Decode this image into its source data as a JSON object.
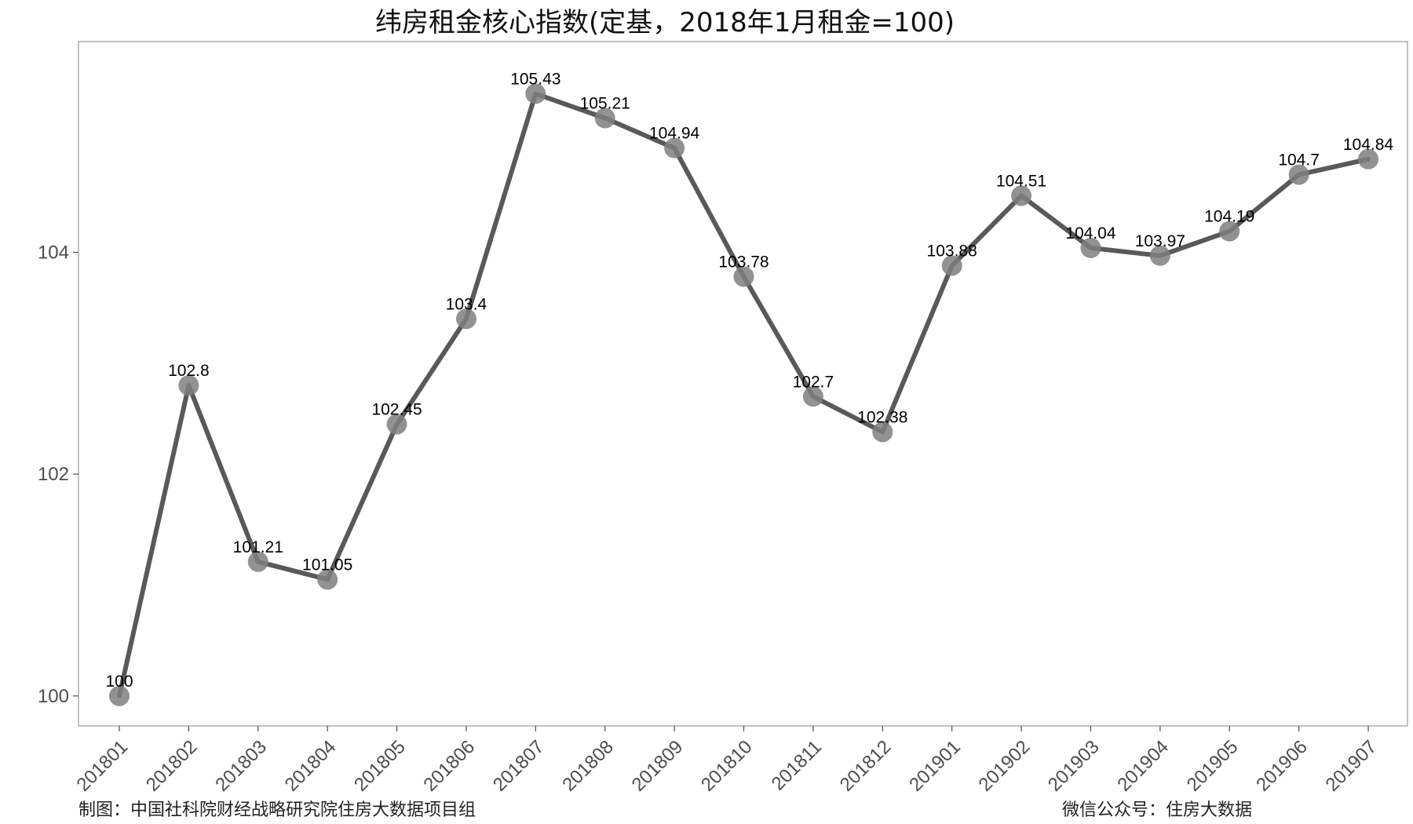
{
  "chart_data": {
    "type": "line",
    "title": "纬房租金核心指数(定基，2018年1月租金=100)",
    "xlabel": "",
    "ylabel": "",
    "categories": [
      "201801",
      "201802",
      "201803",
      "201804",
      "201805",
      "201806",
      "201807",
      "201808",
      "201809",
      "201810",
      "201811",
      "201812",
      "201901",
      "201902",
      "201903",
      "201904",
      "201905",
      "201906",
      "201907"
    ],
    "series": [
      {
        "values": [
          100,
          102.8,
          101.21,
          101.05,
          102.45,
          103.4,
          105.43,
          105.21,
          104.94,
          103.78,
          102.7,
          102.38,
          103.88,
          104.51,
          104.04,
          103.97,
          104.19,
          104.7,
          104.84
        ]
      }
    ],
    "data_labels": [
      "100",
      "102.8",
      "101.21",
      "101.05",
      "102.45",
      "103.4",
      "105.43",
      "105.21",
      "104.94",
      "103.78",
      "102.7",
      "102.38",
      "103.88",
      "104.51",
      "104.04",
      "103.97",
      "104.19",
      "104.7",
      "104.84"
    ],
    "ylim": [
      99.73,
      105.9
    ],
    "yticks": [
      100,
      102,
      104
    ],
    "grid": false,
    "legend": "none",
    "line_color": "#595959",
    "point_color": "#7f7f7f"
  },
  "footer": {
    "left": "制图：中国社科院财经战略研究院住房大数据项目组",
    "right": "微信公众号：住房大数据"
  }
}
